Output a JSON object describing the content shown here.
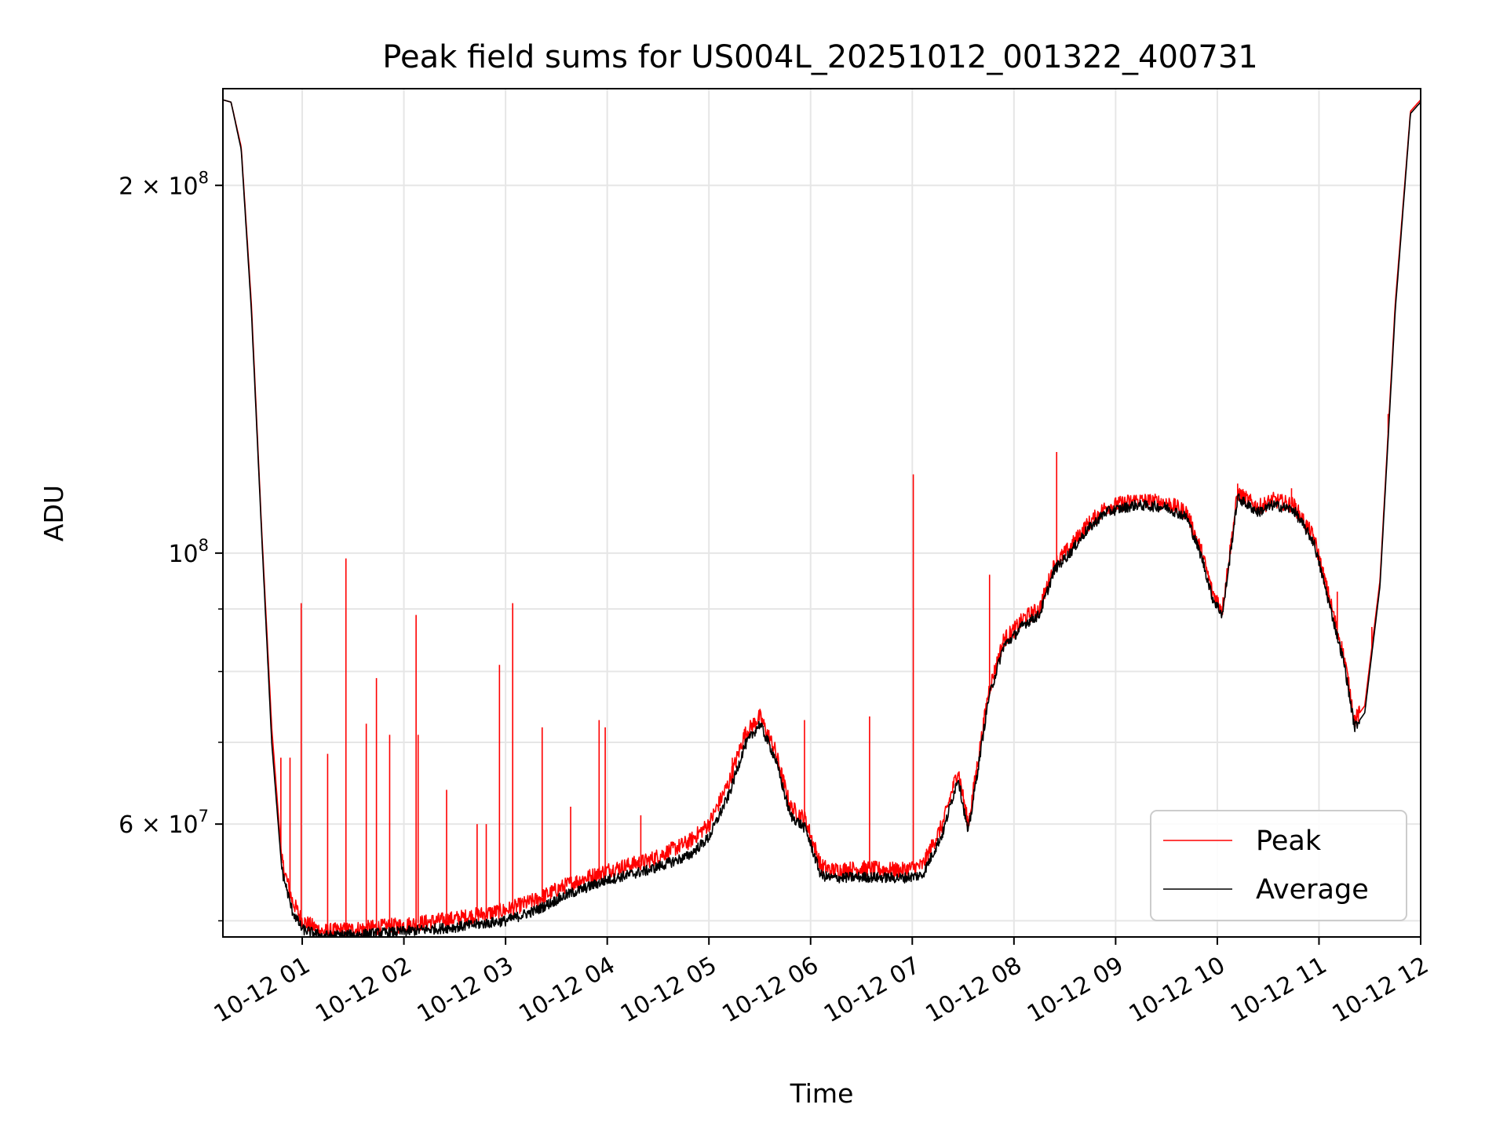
{
  "chart_data": {
    "type": "line",
    "title": "Peak field sums for US004L_20251012_001322_400731",
    "xlabel": "Time",
    "ylabel": "ADU",
    "y_scale": "log",
    "x_unit": "hours since 10-12 00:00",
    "xlim": [
      0.22,
      12.0
    ],
    "ylim": [
      48500000,
      240000000
    ],
    "x_ticks": [
      {
        "x": 1,
        "label": "10-12 01"
      },
      {
        "x": 2,
        "label": "10-12 02"
      },
      {
        "x": 3,
        "label": "10-12 03"
      },
      {
        "x": 4,
        "label": "10-12 04"
      },
      {
        "x": 5,
        "label": "10-12 05"
      },
      {
        "x": 6,
        "label": "10-12 06"
      },
      {
        "x": 7,
        "label": "10-12 07"
      },
      {
        "x": 8,
        "label": "10-12 08"
      },
      {
        "x": 9,
        "label": "10-12 09"
      },
      {
        "x": 10,
        "label": "10-12 10"
      },
      {
        "x": 11,
        "label": "10-12 11"
      },
      {
        "x": 12,
        "label": "10-12 12"
      }
    ],
    "y_ticks_major": [
      {
        "y": 60000000,
        "mantissa": "6",
        "times": " × 10",
        "exp": "7"
      },
      {
        "y": 100000000,
        "mantissa": "",
        "times": "10",
        "exp": "8"
      },
      {
        "y": 200000000,
        "mantissa": "2",
        "times": " × 10",
        "exp": "8"
      }
    ],
    "y_ticks_minor": [
      50000000,
      70000000,
      80000000,
      90000000
    ],
    "grid": true,
    "legend": {
      "position": "lower-right"
    },
    "series": [
      {
        "name": "Peak",
        "color": "#ff0000",
        "x": [
          0.22,
          0.3,
          0.4,
          0.5,
          0.6,
          0.7,
          0.8,
          0.9,
          1.0,
          1.2,
          1.5,
          2.0,
          2.5,
          3.0,
          3.3,
          3.6,
          4.0,
          4.4,
          4.8,
          5.0,
          5.2,
          5.35,
          5.5,
          5.65,
          5.8,
          5.95,
          6.1,
          6.2,
          6.5,
          6.9,
          7.1,
          7.3,
          7.45,
          7.55,
          7.75,
          7.9,
          8.0,
          8.1,
          8.25,
          8.4,
          8.55,
          8.7,
          8.9,
          9.2,
          9.5,
          9.7,
          9.85,
          9.95,
          10.05,
          10.2,
          10.4,
          10.55,
          10.75,
          10.95,
          11.1,
          11.25,
          11.35,
          11.45,
          11.6,
          11.75,
          11.9,
          12.0
        ],
        "y": [
          235000000,
          234000000,
          215000000,
          160000000,
          105000000,
          72000000,
          56000000,
          52000000,
          50000000,
          49000000,
          49200000,
          49600000,
          50200000,
          51000000,
          52000000,
          53500000,
          55000000,
          56000000,
          58000000,
          60000000,
          65000000,
          71000000,
          73500000,
          69000000,
          62000000,
          60500000,
          55500000,
          55000000,
          55200000,
          55000000,
          55500000,
          60000000,
          66500000,
          60000000,
          77000000,
          85000000,
          86500000,
          88500000,
          90000000,
          98000000,
          101000000,
          105000000,
          109000000,
          110500000,
          110000000,
          108000000,
          100000000,
          93000000,
          90000000,
          112000000,
          109000000,
          110500000,
          109500000,
          103000000,
          92000000,
          82000000,
          73000000,
          75000000,
          95000000,
          160000000,
          230000000,
          235000000
        ]
      },
      {
        "name": "Average",
        "color": "#000000",
        "x": [
          0.22,
          0.3,
          0.4,
          0.5,
          0.6,
          0.7,
          0.8,
          0.9,
          1.0,
          1.2,
          1.5,
          2.0,
          2.5,
          3.0,
          3.3,
          3.6,
          4.0,
          4.4,
          4.8,
          5.0,
          5.2,
          5.35,
          5.5,
          5.65,
          5.8,
          5.95,
          6.1,
          6.2,
          6.5,
          6.9,
          7.1,
          7.3,
          7.45,
          7.55,
          7.75,
          7.9,
          8.0,
          8.1,
          8.25,
          8.4,
          8.55,
          8.7,
          8.9,
          9.2,
          9.5,
          9.7,
          9.85,
          9.95,
          10.05,
          10.2,
          10.4,
          10.55,
          10.75,
          10.95,
          11.1,
          11.25,
          11.35,
          11.45,
          11.6,
          11.75,
          11.9,
          12.0
        ],
        "y": [
          235000000,
          234000000,
          214000000,
          158000000,
          104000000,
          70000000,
          55000000,
          51000000,
          49200000,
          48600000,
          48700000,
          49000000,
          49400000,
          50000000,
          51000000,
          52500000,
          54000000,
          55000000,
          56500000,
          58500000,
          63500000,
          69500000,
          72500000,
          68000000,
          61000000,
          59500000,
          54500000,
          54200000,
          54300000,
          54200000,
          54500000,
          59000000,
          65500000,
          59000000,
          76000000,
          84000000,
          85500000,
          87500000,
          89000000,
          97000000,
          100000000,
          104000000,
          108000000,
          109500000,
          109000000,
          107000000,
          99000000,
          92000000,
          89000000,
          111000000,
          108000000,
          109500000,
          108500000,
          102000000,
          91000000,
          81000000,
          72000000,
          74000000,
          94000000,
          158000000,
          229000000,
          234000000
        ]
      }
    ],
    "peak_spikes": [
      {
        "x": 0.79,
        "y": 68000000
      },
      {
        "x": 0.88,
        "y": 68000000
      },
      {
        "x": 0.99,
        "y": 91000000
      },
      {
        "x": 1.25,
        "y": 68500000
      },
      {
        "x": 1.43,
        "y": 99000000
      },
      {
        "x": 1.63,
        "y": 72500000
      },
      {
        "x": 1.73,
        "y": 79000000
      },
      {
        "x": 1.86,
        "y": 71000000
      },
      {
        "x": 2.12,
        "y": 89000000
      },
      {
        "x": 2.14,
        "y": 71000000
      },
      {
        "x": 2.42,
        "y": 64000000
      },
      {
        "x": 2.72,
        "y": 60000000
      },
      {
        "x": 2.81,
        "y": 60000000
      },
      {
        "x": 2.94,
        "y": 81000000
      },
      {
        "x": 3.07,
        "y": 91000000
      },
      {
        "x": 3.36,
        "y": 72000000
      },
      {
        "x": 3.64,
        "y": 62000000
      },
      {
        "x": 3.92,
        "y": 73000000
      },
      {
        "x": 3.98,
        "y": 72000000
      },
      {
        "x": 4.33,
        "y": 61000000
      },
      {
        "x": 5.23,
        "y": 68000000
      },
      {
        "x": 5.94,
        "y": 73000000
      },
      {
        "x": 6.58,
        "y": 73500000
      },
      {
        "x": 7.01,
        "y": 116000000
      },
      {
        "x": 7.76,
        "y": 96000000
      },
      {
        "x": 8.42,
        "y": 121000000
      },
      {
        "x": 9.73,
        "y": 106000000
      },
      {
        "x": 10.2,
        "y": 114000000
      },
      {
        "x": 10.73,
        "y": 113000000
      },
      {
        "x": 11.07,
        "y": 95000000
      },
      {
        "x": 11.18,
        "y": 93000000
      },
      {
        "x": 11.52,
        "y": 87000000
      },
      {
        "x": 11.68,
        "y": 130000000
      }
    ]
  }
}
